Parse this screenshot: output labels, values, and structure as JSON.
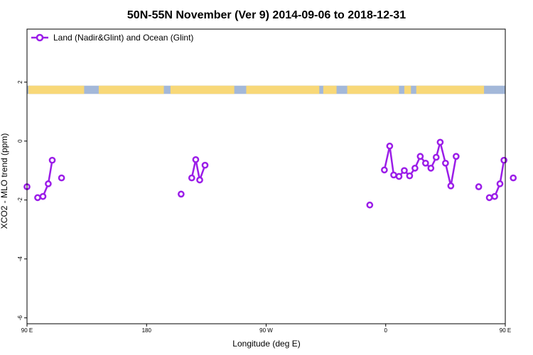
{
  "chart_data": {
    "type": "line",
    "title": "50N-55N November (Ver 9)   2014-09-06 to 2018-12-31",
    "xlabel": "Longitude (deg E)",
    "ylabel": "XCO2 - MLO trend (ppm)",
    "xlim": [
      90,
      450
    ],
    "ylim": [
      -6.2,
      3.8
    ],
    "x_ticks": [
      {
        "value": 90,
        "label": "90 E"
      },
      {
        "value": 180,
        "label": "180"
      },
      {
        "value": 270,
        "label": "90 W"
      },
      {
        "value": 360,
        "label": "0"
      },
      {
        "value": 450,
        "label": "90 E"
      },
      {
        "value": 540,
        "label": "180"
      }
    ],
    "y_ticks": [
      {
        "value": 2,
        "label": "2"
      },
      {
        "value": 0,
        "label": "0"
      },
      {
        "value": -2,
        "label": "-2"
      },
      {
        "value": -4,
        "label": "-4"
      },
      {
        "value": -6,
        "label": "-6"
      }
    ],
    "grid": false,
    "legend_position": "top-left",
    "land_ocean_strip": {
      "y_range": [
        1.6,
        1.88
      ],
      "ocean_color": "#a3b8d9",
      "land_color": "#f8d878",
      "land_segments": [
        [
          91,
          133
        ],
        [
          144,
          193
        ],
        [
          198,
          246
        ],
        [
          255,
          310
        ],
        [
          313,
          323
        ],
        [
          331,
          370
        ],
        [
          374,
          379
        ],
        [
          383,
          434
        ],
        [
          462,
          520
        ],
        [
          526,
          530
        ]
      ]
    },
    "series": [
      {
        "name": "Land (Nadir&Glint) and Ocean (Glint)",
        "color": "#9b1de8",
        "segments": [
          [
            [
              90,
              -1.55
            ]
          ],
          [
            [
              98,
              -1.92
            ],
            [
              102,
              -1.88
            ],
            [
              106,
              -1.45
            ],
            [
              109,
              -0.65
            ]
          ],
          [
            [
              116,
              -1.25
            ]
          ],
          [
            [
              206,
              -1.8
            ]
          ],
          [
            [
              214,
              -1.25
            ],
            [
              217,
              -0.63
            ],
            [
              220,
              -1.32
            ],
            [
              224,
              -0.82
            ]
          ],
          [
            [
              348,
              -2.17
            ]
          ],
          [
            [
              359,
              -0.98
            ],
            [
              363,
              -0.17
            ],
            [
              366,
              -1.15
            ],
            [
              370,
              -1.2
            ],
            [
              374,
              -1.0
            ],
            [
              378,
              -1.18
            ],
            [
              382,
              -0.92
            ],
            [
              386,
              -0.52
            ],
            [
              390,
              -0.75
            ],
            [
              394,
              -0.92
            ],
            [
              398,
              -0.55
            ],
            [
              401,
              -0.04
            ],
            [
              405,
              -0.75
            ],
            [
              409,
              -1.52
            ],
            [
              413,
              -0.52
            ]
          ],
          [
            [
              430,
              -1.55
            ]
          ],
          [
            [
              438,
              -1.92
            ],
            [
              442,
              -1.88
            ],
            [
              446,
              -1.45
            ],
            [
              449,
              -0.65
            ]
          ],
          [
            [
              456,
              -1.25
            ]
          ]
        ]
      }
    ]
  }
}
